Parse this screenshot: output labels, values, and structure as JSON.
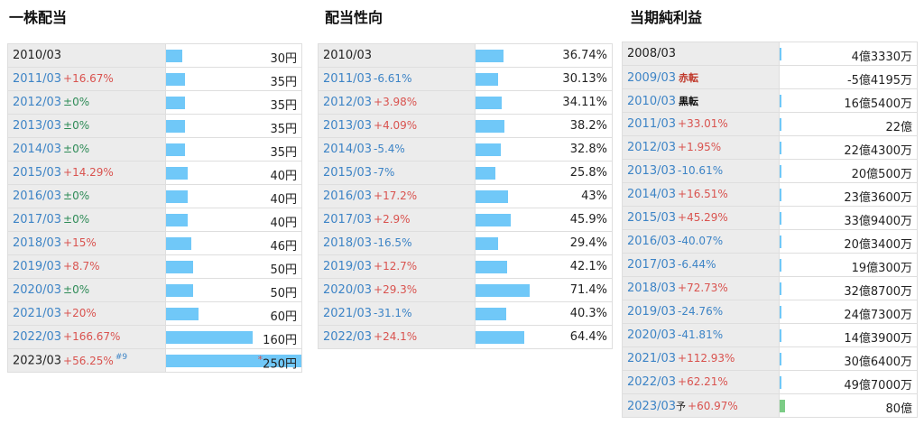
{
  "dividend": {
    "title": "一株配当",
    "rows": [
      {
        "year": "2010/03",
        "change": "",
        "tone": "",
        "value": "30円",
        "amount": 30
      },
      {
        "year": "2011/03",
        "change": "+16.67%",
        "tone": "red",
        "value": "35円",
        "amount": 35
      },
      {
        "year": "2012/03",
        "change": "±0%",
        "tone": "green",
        "value": "35円",
        "amount": 35
      },
      {
        "year": "2013/03",
        "change": "±0%",
        "tone": "green",
        "value": "35円",
        "amount": 35
      },
      {
        "year": "2014/03",
        "change": "±0%",
        "tone": "green",
        "value": "35円",
        "amount": 35
      },
      {
        "year": "2015/03",
        "change": "+14.29%",
        "tone": "red",
        "value": "40円",
        "amount": 40
      },
      {
        "year": "2016/03",
        "change": "±0%",
        "tone": "green",
        "value": "40円",
        "amount": 40
      },
      {
        "year": "2017/03",
        "change": "±0%",
        "tone": "green",
        "value": "40円",
        "amount": 40
      },
      {
        "year": "2018/03",
        "change": "+15%",
        "tone": "red",
        "value": "46円",
        "amount": 46
      },
      {
        "year": "2019/03",
        "change": "+8.7%",
        "tone": "red",
        "value": "50円",
        "amount": 50
      },
      {
        "year": "2020/03",
        "change": "±0%",
        "tone": "green",
        "value": "50円",
        "amount": 50
      },
      {
        "year": "2021/03",
        "change": "+20%",
        "tone": "red",
        "value": "60円",
        "amount": 60
      },
      {
        "year": "2022/03",
        "change": "+166.67%",
        "tone": "red",
        "value": "160円",
        "amount": 160
      },
      {
        "year": "2023/03",
        "change": "+56.25%",
        "tone": "red",
        "value": "250円",
        "amount": 250,
        "note": "#9",
        "asterisk": "*"
      }
    ]
  },
  "payout": {
    "title": "配当性向",
    "rows": [
      {
        "year": "2010/03",
        "change": "",
        "tone": "",
        "value": "36.74%",
        "amount": 36.74
      },
      {
        "year": "2011/03",
        "change": "-6.61%",
        "tone": "blue",
        "value": "30.13%",
        "amount": 30.13
      },
      {
        "year": "2012/03",
        "change": "+3.98%",
        "tone": "red",
        "value": "34.11%",
        "amount": 34.11
      },
      {
        "year": "2013/03",
        "change": "+4.09%",
        "tone": "red",
        "value": "38.2%",
        "amount": 38.2
      },
      {
        "year": "2014/03",
        "change": "-5.4%",
        "tone": "blue",
        "value": "32.8%",
        "amount": 32.8
      },
      {
        "year": "2015/03",
        "change": "-7%",
        "tone": "blue",
        "value": "25.8%",
        "amount": 25.8
      },
      {
        "year": "2016/03",
        "change": "+17.2%",
        "tone": "red",
        "value": "43%",
        "amount": 43
      },
      {
        "year": "2017/03",
        "change": "+2.9%",
        "tone": "red",
        "value": "45.9%",
        "amount": 45.9
      },
      {
        "year": "2018/03",
        "change": "-16.5%",
        "tone": "blue",
        "value": "29.4%",
        "amount": 29.4
      },
      {
        "year": "2019/03",
        "change": "+12.7%",
        "tone": "red",
        "value": "42.1%",
        "amount": 42.1
      },
      {
        "year": "2020/03",
        "change": "+29.3%",
        "tone": "red",
        "value": "71.4%",
        "amount": 71.4
      },
      {
        "year": "2021/03",
        "change": "-31.1%",
        "tone": "blue",
        "value": "40.3%",
        "amount": 40.3
      },
      {
        "year": "2022/03",
        "change": "+24.1%",
        "tone": "red",
        "value": "64.4%",
        "amount": 64.4
      }
    ]
  },
  "profit": {
    "title": "当期純利益",
    "rows": [
      {
        "year": "2008/03",
        "change": "",
        "tone": "",
        "value": "4億3330万",
        "amount": 43330
      },
      {
        "year": "2009/03",
        "change": "",
        "tone": "",
        "tag": "赤転",
        "tagTone": "red",
        "value": "-5億4195万",
        "amount": -54195
      },
      {
        "year": "2010/03",
        "change": "",
        "tone": "",
        "tag": "黒転",
        "tagTone": "black",
        "value": "16億5400万",
        "amount": 165400
      },
      {
        "year": "2011/03",
        "change": "+33.01%",
        "tone": "red",
        "value": "22億",
        "amount": 220000
      },
      {
        "year": "2012/03",
        "change": "+1.95%",
        "tone": "red",
        "value": "22億4300万",
        "amount": 224300
      },
      {
        "year": "2013/03",
        "change": "-10.61%",
        "tone": "blue",
        "value": "20億500万",
        "amount": 200500
      },
      {
        "year": "2014/03",
        "change": "+16.51%",
        "tone": "red",
        "value": "23億3600万",
        "amount": 233600
      },
      {
        "year": "2015/03",
        "change": "+45.29%",
        "tone": "red",
        "value": "33億9400万",
        "amount": 339400
      },
      {
        "year": "2016/03",
        "change": "-40.07%",
        "tone": "blue",
        "value": "20億3400万",
        "amount": 203400
      },
      {
        "year": "2017/03",
        "change": "-6.44%",
        "tone": "blue",
        "value": "19億300万",
        "amount": 190300
      },
      {
        "year": "2018/03",
        "change": "+72.73%",
        "tone": "red",
        "value": "32億8700万",
        "amount": 328700
      },
      {
        "year": "2019/03",
        "change": "-24.76%",
        "tone": "blue",
        "value": "24億7300万",
        "amount": 247300
      },
      {
        "year": "2020/03",
        "change": "-41.81%",
        "tone": "blue",
        "value": "14億3900万",
        "amount": 143900
      },
      {
        "year": "2021/03",
        "change": "+112.93%",
        "tone": "red",
        "value": "30億6400万",
        "amount": 306400
      },
      {
        "year": "2022/03",
        "change": "+62.21%",
        "tone": "red",
        "value": "49億7000万",
        "amount": 497000
      },
      {
        "year": "2023/03",
        "change": "+60.97%",
        "tone": "red",
        "value": "80億",
        "amount": 800000,
        "forecast": "予",
        "barColor": "green"
      }
    ]
  }
}
